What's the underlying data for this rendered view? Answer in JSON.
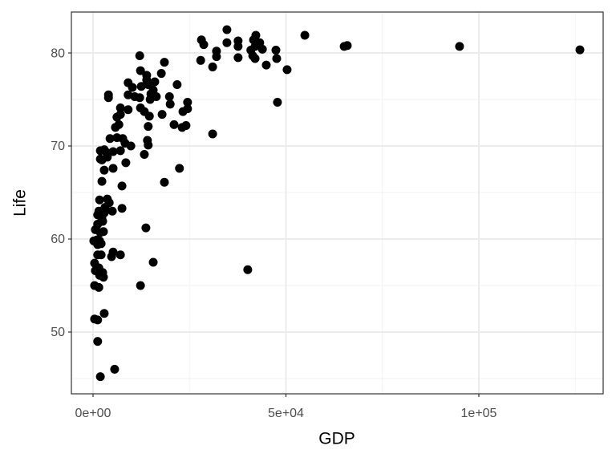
{
  "chart_data": {
    "type": "scatter",
    "x_label": "GDP",
    "y_label": "Life",
    "xlim": [
      -5613,
      132225
    ],
    "ylim": [
      43.36,
      84.4
    ],
    "xticks": [
      {
        "value": 0,
        "label": "0e+00"
      },
      {
        "value": 50000,
        "label": "5e+04"
      },
      {
        "value": 100000,
        "label": "1e+05"
      }
    ],
    "yticks": [
      50,
      60,
      70,
      80
    ],
    "xminor": [
      25000,
      75000,
      125000
    ],
    "yminor": [
      45,
      55,
      65,
      75
    ],
    "grid": true,
    "color": "#000000",
    "x": [
      126200,
      95000,
      65900,
      65100,
      54900,
      50300,
      47800,
      47400,
      47600,
      44900,
      43900,
      43200,
      42200,
      41600,
      42000,
      41400,
      42000,
      40900,
      40100,
      37600,
      37600,
      37600,
      34700,
      34700,
      32000,
      32000,
      31000,
      31000,
      28100,
      28700,
      27900,
      24500,
      24500,
      23300,
      24100,
      23100,
      21800,
      22400,
      19800,
      20000,
      21000,
      18500,
      17700,
      18500,
      17900,
      16000,
      16400,
      15600,
      15000,
      14800,
      13900,
      13900,
      14300,
      15600,
      14600,
      14300,
      14100,
      14300,
      13700,
      13300,
      13300,
      12100,
      12300,
      12100,
      12500,
      12300,
      12300,
      10800,
      10200,
      9100,
      9100,
      9100,
      9800,
      8500,
      8300,
      7700,
      7100,
      7500,
      7100,
      7500,
      7100,
      6700,
      5800,
      6200,
      6200,
      5200,
      5600,
      5200,
      5000,
      4800,
      5200,
      7100,
      4000,
      4000,
      4400,
      3500,
      3700,
      2900,
      2900,
      3700,
      4200,
      3100,
      3100,
      2300,
      2900,
      2300,
      1900,
      1900,
      2300,
      1700,
      1500,
      1200,
      1200,
      1900,
      2700,
      1700,
      2100,
      1000,
      600,
      200,
      1200,
      2100,
      400,
      1500,
      600,
      2500,
      1700,
      2700,
      400,
      1500,
      2900,
      400,
      1200,
      1200,
      1900,
      1200,
      2500
    ],
    "values": [
      80.34,
      80.7,
      80.8,
      80.7,
      81.9,
      78.2,
      74.7,
      80.3,
      79.4,
      78.7,
      80.4,
      81.1,
      81.9,
      81.4,
      80.7,
      79.7,
      79.4,
      80.3,
      56.7,
      81.3,
      80.7,
      79.5,
      82.5,
      81.1,
      80.2,
      79.6,
      78.5,
      71.3,
      81.4,
      80.9,
      79.2,
      74.7,
      74.0,
      73.7,
      72.2,
      72.0,
      76.6,
      67.6,
      75.3,
      74.5,
      72.3,
      79.0,
      77.8,
      66.1,
      73.4,
      76.9,
      75.3,
      76.0,
      75.6,
      75.0,
      77.6,
      77.1,
      76.6,
      57.5,
      73.2,
      72.1,
      70.6,
      70.1,
      61.2,
      69.1,
      73.7,
      79.7,
      78.1,
      75.2,
      76.4,
      74.1,
      55.0,
      75.3,
      76.3,
      76.8,
      75.5,
      73.9,
      70.0,
      68.2,
      70.3,
      70.8,
      69.5,
      65.7,
      74.1,
      63.3,
      73.4,
      72.3,
      72.0,
      73.1,
      70.9,
      67.6,
      46.0,
      69.4,
      63.0,
      58.1,
      58.6,
      58.3,
      75.5,
      75.2,
      70.8,
      69.3,
      68.8,
      69.6,
      67.4,
      64.3,
      63.9,
      63.4,
      63.0,
      62.2,
      62.8,
      66.2,
      68.6,
      69.5,
      68.5,
      64.2,
      63.0,
      62.6,
      61.6,
      60.7,
      60.8,
      59.8,
      59.5,
      59.9,
      61.0,
      59.8,
      58.3,
      58.3,
      57.4,
      56.9,
      56.6,
      56.4,
      56.1,
      55.9,
      55.0,
      54.8,
      52.0,
      51.4,
      51.3,
      49.0,
      45.2,
      59.4,
      61.9
    ]
  }
}
